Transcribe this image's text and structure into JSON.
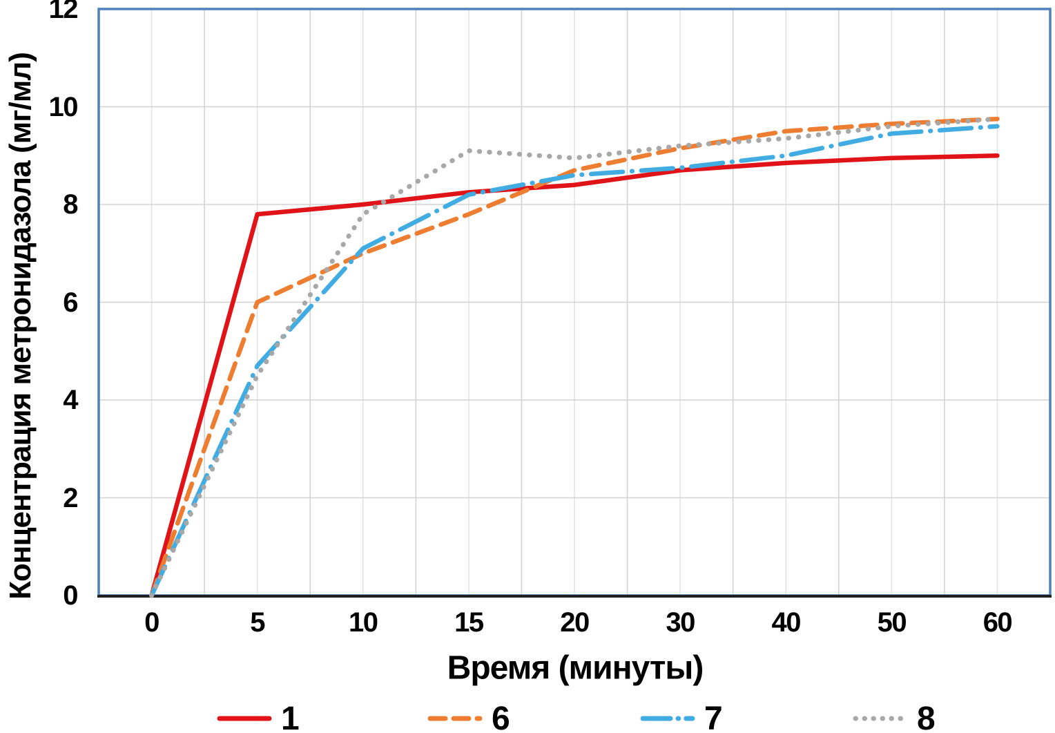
{
  "chart_data": {
    "type": "line",
    "title": "",
    "xlabel": "Время (минуты)",
    "ylabel": "Концентрация метронидазола (мг/мл)",
    "x_axis_type": "category",
    "categories": [
      0,
      5,
      10,
      15,
      20,
      30,
      40,
      50,
      60
    ],
    "ylim": [
      0,
      12
    ],
    "y_ticks": [
      0,
      2,
      4,
      6,
      8,
      10,
      12
    ],
    "grid": "horizontal major every 2 units; vertical gridlines at category boundaries (major) and centers (minor)",
    "legend_position": "bottom",
    "series": [
      {
        "name": "1",
        "color": "#E01418",
        "style": "solid",
        "values": [
          0,
          7.8,
          8.0,
          8.25,
          8.4,
          8.7,
          8.85,
          8.95,
          9.0
        ]
      },
      {
        "name": "6",
        "color": "#ED7D31",
        "style": "dashed",
        "values": [
          0,
          6.0,
          7.0,
          7.8,
          8.7,
          9.15,
          9.5,
          9.65,
          9.75
        ]
      },
      {
        "name": "7",
        "color": "#41ACE2",
        "style": "long-dash-dot",
        "values": [
          0,
          4.7,
          7.1,
          8.2,
          8.6,
          8.75,
          9.0,
          9.45,
          9.6
        ]
      },
      {
        "name": "8",
        "color": "#A8A8A8",
        "style": "dotted",
        "values": [
          0,
          4.5,
          7.8,
          9.1,
          8.95,
          9.2,
          9.35,
          9.6,
          9.75
        ]
      }
    ],
    "colors": {
      "plot_border": "#4F81BD",
      "axis_line": "#1F1F1F",
      "gridline_major": "#D2D2D2",
      "gridline_minor": "#E3E3E3",
      "text": "#000000",
      "background": "#FFFFFF"
    }
  }
}
